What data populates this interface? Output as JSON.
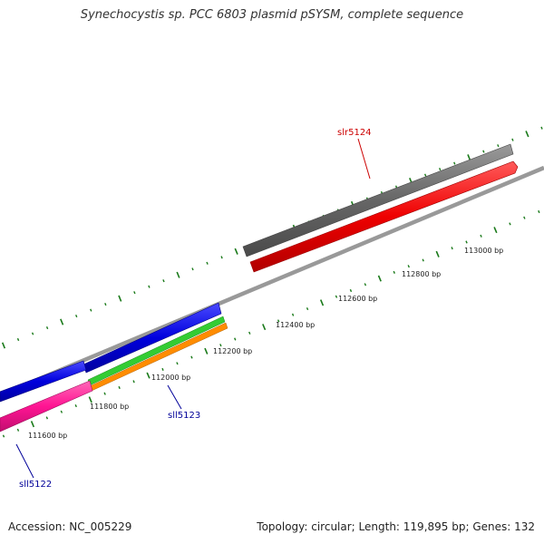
{
  "title": "Synechocystis sp. PCC 6803 plasmid pSYSM, complete sequence",
  "accession": "Accession: NC_005229",
  "summary": "Topology: circular; Length: 119,895 bp; Genes: 132",
  "axis": {
    "tick_labels": [
      "111600 bp",
      "111800 bp",
      "112000 bp",
      "112200 bp",
      "112400 bp",
      "112600 bp",
      "112800 bp",
      "113000 bp"
    ]
  },
  "genes": [
    {
      "label": "slr5124",
      "color": "#cc0000"
    },
    {
      "label": "sll5123",
      "color": "#000099"
    },
    {
      "label": "sll5122",
      "color": "#000099"
    }
  ],
  "colors": {
    "backbone": "#888888",
    "tick": "#1a7a1a",
    "gray_feature": "#666666",
    "red_feature": "#ee0000",
    "blue_feature": "#0000dd",
    "pink_feature": "#ff1493",
    "green_feature": "#33cc33",
    "orange_feature": "#ff8c00"
  }
}
